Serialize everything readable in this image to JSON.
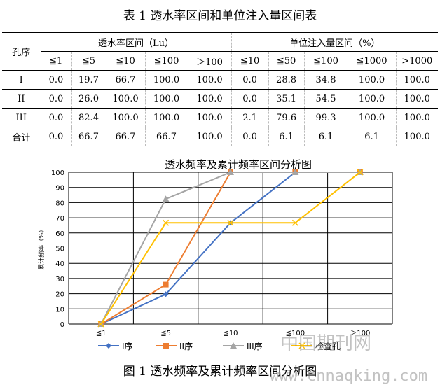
{
  "table": {
    "title": "表 1 透水率区间和单位注入量区间表",
    "row_header": "孔序",
    "group1": "透水率区间（Lu）",
    "group2": "单位注入量区间（%）",
    "columns": [
      "≦1",
      "≦5",
      "≦10",
      "≦100",
      "＞100",
      "≦10",
      "≦50",
      "≦100",
      "≦1000",
      ">1000"
    ],
    "rows": [
      {
        "label": "I",
        "values": [
          "0.0",
          "19.7",
          "66.7",
          "100.0",
          "100.0",
          "0.0",
          "28.8",
          "34.8",
          "100.0",
          "100.0"
        ]
      },
      {
        "label": "II",
        "values": [
          "0.0",
          "26.0",
          "100.0",
          "100.0",
          "100.0",
          "0.0",
          "35.1",
          "54.5",
          "100.0",
          "100.0"
        ]
      },
      {
        "label": "III",
        "values": [
          "0.0",
          "82.4",
          "100.0",
          "100.0",
          "100.0",
          "2.1",
          "79.6",
          "99.3",
          "100.0",
          "100.0"
        ]
      },
      {
        "label": "合计",
        "values": [
          "0.0",
          "66.7",
          "66.7",
          "66.7",
          "100.0",
          "0.0",
          "6.1",
          "6.1",
          "6.1",
          "100.0"
        ]
      }
    ]
  },
  "chart_data": {
    "type": "line",
    "title": "透水频率及累计频率区间分析图",
    "xlabel": "",
    "ylabel": "累计频率（%）",
    "categories": [
      "≦1",
      "≦5",
      "≦10",
      "≦100",
      "＞100"
    ],
    "ylim": [
      0,
      100
    ],
    "yticks": [
      0,
      10,
      20,
      30,
      40,
      50,
      60,
      70,
      80,
      90,
      100
    ],
    "grid": true,
    "legend": "bottom",
    "series": [
      {
        "name": "I序",
        "values": [
          0,
          19.7,
          66.7,
          100,
          100
        ],
        "color": "#4472C4",
        "marker": "diamond"
      },
      {
        "name": "II序",
        "values": [
          0,
          26,
          100,
          100,
          100
        ],
        "color": "#ED7D31",
        "marker": "square"
      },
      {
        "name": "III序",
        "values": [
          0,
          82.4,
          100,
          100,
          100
        ],
        "color": "#A5A5A5",
        "marker": "triangle"
      },
      {
        "name": "检查孔",
        "values": [
          0,
          66.7,
          66.7,
          66.7,
          100
        ],
        "color": "#FFC000",
        "marker": "x"
      }
    ]
  },
  "caption": "图 1 透水频率及累计频率区间分析图",
  "watermark": {
    "name": "中国期刊网",
    "url": "www.cnnaqking.com"
  }
}
